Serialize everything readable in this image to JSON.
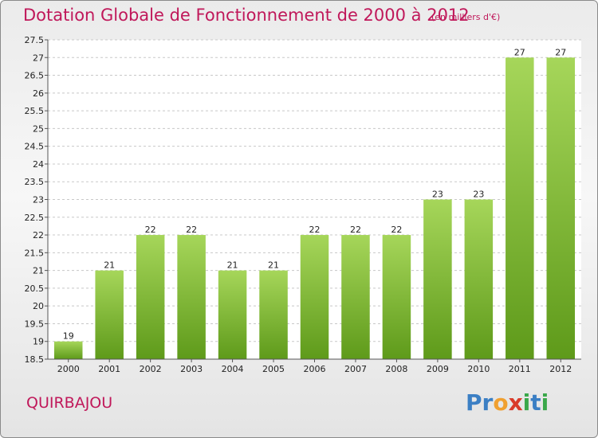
{
  "title": "Dotation Globale de Fonctionnement de 2000 à 2012",
  "subtitle": "(en milliers d'€)",
  "commune": "QUIRBAJOU",
  "logo": {
    "letters": [
      "P",
      "r",
      "o",
      "x",
      "i",
      "t",
      "i"
    ],
    "colors": [
      "#3b7fc4",
      "#3b7fc4",
      "#f0a030",
      "#d93a2a",
      "#3aa84a",
      "#3b7fc4",
      "#3aa84a"
    ]
  },
  "colors": {
    "title": "#c0185a",
    "bar_light": "#a6d65a",
    "bar_dark": "#5e9a1a"
  },
  "chart_data": {
    "type": "bar",
    "categories": [
      "2000",
      "2001",
      "2002",
      "2003",
      "2004",
      "2005",
      "2006",
      "2007",
      "2008",
      "2009",
      "2010",
      "2011",
      "2012"
    ],
    "values": [
      19,
      21,
      22,
      22,
      21,
      21,
      22,
      22,
      22,
      23,
      23,
      27,
      27
    ],
    "data_labels": [
      "19",
      "21",
      "22",
      "22",
      "21",
      "21",
      "22",
      "22",
      "22",
      "23",
      "23",
      "27",
      "27"
    ],
    "ylim": [
      18.5,
      27.5
    ],
    "yticks": [
      "18.5",
      "19",
      "19.5",
      "20",
      "20.5",
      "21",
      "21.5",
      "22",
      "22.5",
      "23",
      "23.5",
      "24",
      "24.5",
      "25",
      "25.5",
      "26",
      "26.5",
      "27",
      "27.5"
    ],
    "grid": true,
    "xlabel": "",
    "ylabel": ""
  }
}
